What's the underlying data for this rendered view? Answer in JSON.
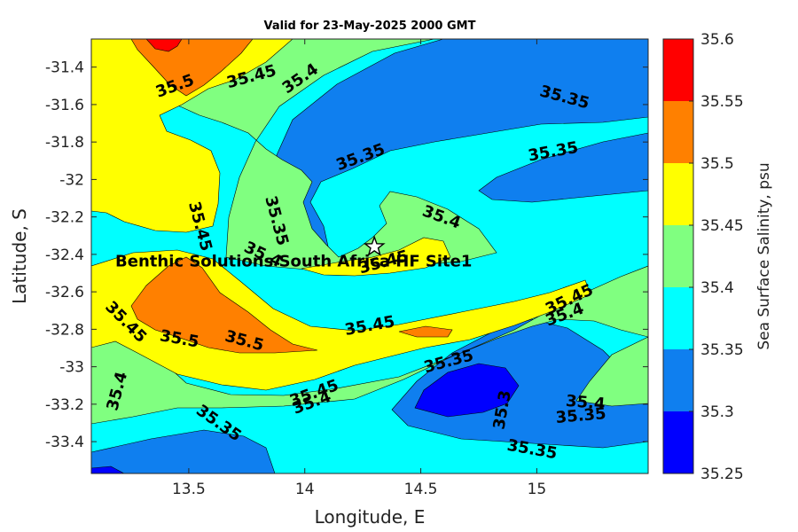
{
  "chart_data": {
    "type": "contour",
    "title": "Valid for 23-May-2025 2000 GMT",
    "xlabel": "Longitude, E",
    "ylabel": "Latitude, S",
    "colorbar_label": "Sea Surface Salinity, psu",
    "xlim": [
      13.08,
      15.48
    ],
    "ylim": [
      -33.57,
      -31.25
    ],
    "x_ticks": [
      13.5,
      14,
      14.5,
      15
    ],
    "x_tick_labels": [
      "13.5",
      "14",
      "14.5",
      "15"
    ],
    "y_ticks": [
      -31.4,
      -31.6,
      -31.8,
      -32,
      -32.2,
      -32.4,
      -32.6,
      -32.8,
      -33,
      -33.2,
      -33.4
    ],
    "y_tick_labels": [
      "-31.4",
      "-31.6",
      "-31.8",
      "-32",
      "-32.2",
      "-32.4",
      "-32.6",
      "-32.8",
      "-33",
      "-33.2",
      "-33.4"
    ],
    "levels": [
      35.25,
      35.3,
      35.35,
      35.4,
      35.45,
      35.5,
      35.55,
      35.6
    ],
    "level_labels": [
      "35.25",
      "35.3",
      "35.35",
      "35.4",
      "35.45",
      "35.5",
      "35.55",
      "35.6"
    ],
    "level_colors": [
      "#0000ff",
      "#0f7fef",
      "#00ffff",
      "#80ff80",
      "#ffff00",
      "#ff8000",
      "#ff0000"
    ],
    "contour_labels": [
      {
        "text": "35.5",
        "lon": 13.44,
        "lat": -31.5,
        "angle": -20
      },
      {
        "text": "35.45",
        "lon": 13.77,
        "lat": -31.45,
        "angle": -15
      },
      {
        "text": "35.4",
        "lon": 13.98,
        "lat": -31.46,
        "angle": -35
      },
      {
        "text": "35.35",
        "lon": 15.12,
        "lat": -31.56,
        "angle": 15
      },
      {
        "text": "35.35",
        "lon": 14.24,
        "lat": -31.88,
        "angle": -20
      },
      {
        "text": "35.35",
        "lon": 15.07,
        "lat": -31.85,
        "angle": -10
      },
      {
        "text": "35.45",
        "lon": 13.55,
        "lat": -32.25,
        "angle": 75
      },
      {
        "text": "35.35",
        "lon": 13.88,
        "lat": -32.22,
        "angle": 75
      },
      {
        "text": "35.4",
        "lon": 14.59,
        "lat": -32.2,
        "angle": 20
      },
      {
        "text": "35.4",
        "lon": 13.82,
        "lat": -32.4,
        "angle": 25
      },
      {
        "text": "35.45",
        "lon": 14.34,
        "lat": -32.44,
        "angle": -15
      },
      {
        "text": "35.45",
        "lon": 13.23,
        "lat": -32.76,
        "angle": 45
      },
      {
        "text": "35.5",
        "lon": 13.46,
        "lat": -32.85,
        "angle": 10
      },
      {
        "text": "35.5",
        "lon": 13.74,
        "lat": -32.86,
        "angle": 15
      },
      {
        "text": "35.45",
        "lon": 14.28,
        "lat": -32.78,
        "angle": -10
      },
      {
        "text": "35.45",
        "lon": 15.14,
        "lat": -32.64,
        "angle": -25
      },
      {
        "text": "35.4",
        "lon": 15.12,
        "lat": -32.72,
        "angle": -20
      },
      {
        "text": "35.35",
        "lon": 14.62,
        "lat": -32.97,
        "angle": -15
      },
      {
        "text": "35.45",
        "lon": 14.04,
        "lat": -33.14,
        "angle": -20
      },
      {
        "text": "35.4",
        "lon": 14.03,
        "lat": -33.19,
        "angle": -20
      },
      {
        "text": "35.4",
        "lon": 13.19,
        "lat": -33.13,
        "angle": -75
      },
      {
        "text": "35.35",
        "lon": 13.63,
        "lat": -33.3,
        "angle": 35
      },
      {
        "text": "35.3",
        "lon": 14.85,
        "lat": -33.23,
        "angle": -80
      },
      {
        "text": "35.4",
        "lon": 15.21,
        "lat": -33.19,
        "angle": 5
      },
      {
        "text": "35.35",
        "lon": 15.19,
        "lat": -33.26,
        "angle": -5
      },
      {
        "text": "35.35",
        "lon": 14.98,
        "lat": -33.44,
        "angle": 10
      }
    ],
    "site": {
      "label": "Benthic Solutions South Africa HF Site1",
      "lon": 14.3,
      "lat": -32.36,
      "marker": "star"
    }
  }
}
